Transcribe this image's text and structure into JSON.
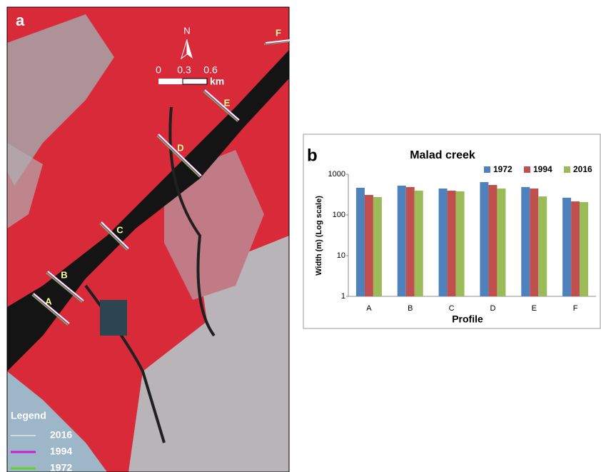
{
  "map_panel": {
    "panel_label": "a",
    "north": "N",
    "scale_labels": [
      "0",
      "0.3",
      "0.6"
    ],
    "scale_unit": "km",
    "profiles": [
      "A",
      "B",
      "C",
      "D",
      "E",
      "F"
    ],
    "legend": {
      "title": "Legend",
      "entries": [
        {
          "label": "2016",
          "color": "#ffffff"
        },
        {
          "label": "1994",
          "color": "#c81ed2"
        },
        {
          "label": "1972",
          "color": "#5fd32a"
        }
      ]
    }
  },
  "chart_data": {
    "type": "bar",
    "panel_label": "b",
    "title": "Malad creek",
    "x_label": "Profile",
    "y_label": "Width (m)  (Log scale)",
    "categories": [
      "A",
      "B",
      "C",
      "D",
      "E",
      "F"
    ],
    "series": [
      {
        "name": "1972",
        "color": "#4f81bd",
        "values": [
          465,
          525,
          445,
          640,
          485,
          265
        ]
      },
      {
        "name": "1994",
        "color": "#c0504d",
        "values": [
          310,
          485,
          395,
          545,
          445,
          215
        ]
      },
      {
        "name": "2016",
        "color": "#9bbb59",
        "values": [
          275,
          395,
          380,
          445,
          285,
          207
        ]
      }
    ],
    "ylim": [
      1,
      1000
    ],
    "yticks": [
      1,
      10,
      100,
      1000
    ],
    "log_scale": true,
    "legend": "top-right"
  }
}
